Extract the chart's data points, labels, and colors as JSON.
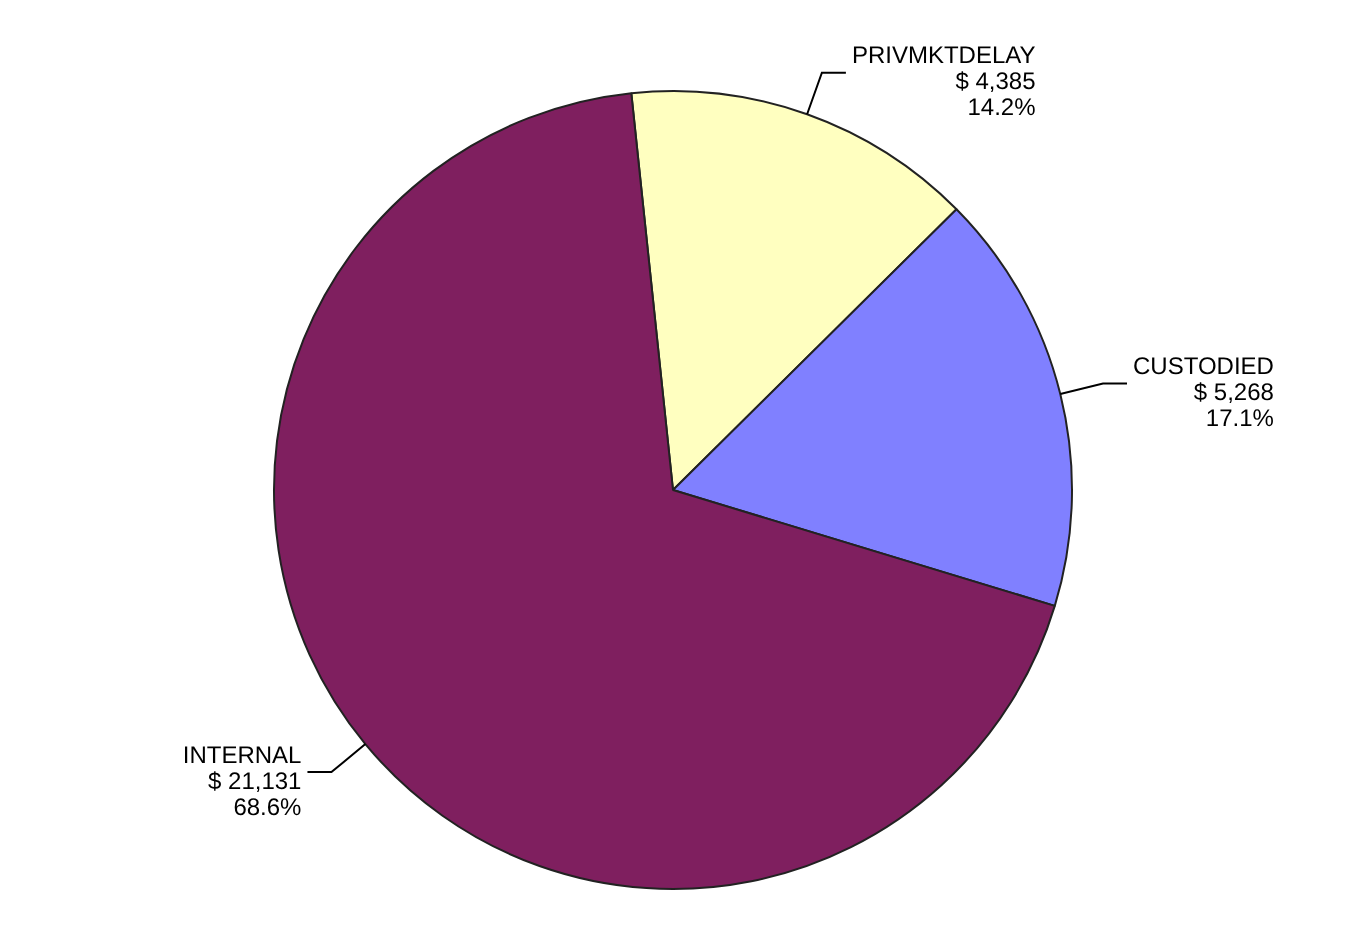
{
  "chart_data": {
    "type": "pie",
    "categories": [
      "PRIVMKTDELAY",
      "CUSTODIED",
      "INTERNAL"
    ],
    "values": [
      4385,
      5268,
      21131
    ],
    "colors": [
      "#ffffc0",
      "#8080ff",
      "#7f1f5f"
    ],
    "value_labels": [
      "$ 4,385\n14.2%",
      "$ 5,268\n17.1%",
      "$ 21,131\n68.6%"
    ],
    "legend": false
  }
}
